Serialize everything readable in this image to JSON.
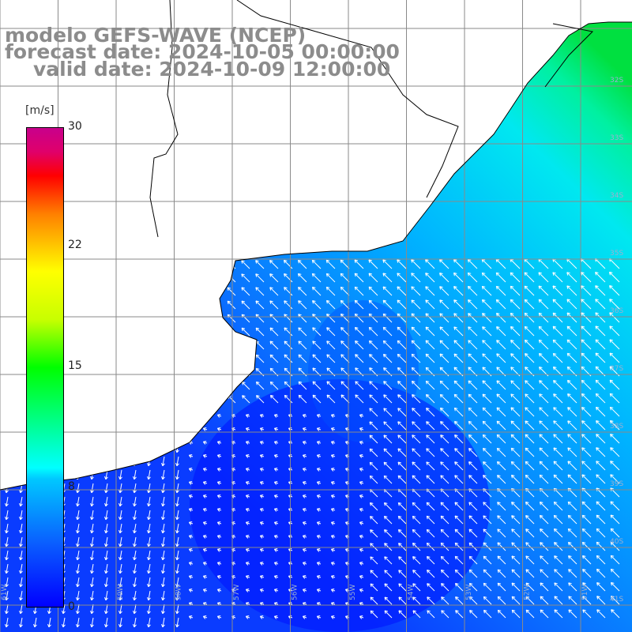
{
  "title": {
    "line1": "modelo GEFS-WAVE (NCEP)",
    "line2": "forecast date: 2024-10-05 00:00:00",
    "line3": "valid date: 2024-10-09 12:00:00"
  },
  "colorbar": {
    "unit": "[m/s]",
    "ticks": [
      {
        "value": 30,
        "label": "30"
      },
      {
        "value": 22,
        "label": "22"
      },
      {
        "value": 15,
        "label": "15"
      },
      {
        "value": 8,
        "label": "8"
      },
      {
        "value": 0,
        "label": "0"
      }
    ],
    "min": 0,
    "max": 30
  },
  "map": {
    "variable": "wind speed and direction",
    "lon_labels": [
      "61W",
      "60W",
      "59W",
      "58W",
      "57W",
      "56W",
      "55W",
      "54W",
      "53W",
      "52W",
      "51W",
      "50W"
    ],
    "lat_labels": [
      "32S",
      "33S",
      "34S",
      "35S",
      "36S",
      "37S",
      "38S",
      "39S",
      "40S",
      "41S"
    ],
    "colors": {
      "land": "#ffffff",
      "grid": "#8a8a8a",
      "coast": "#000000",
      "arrows": "#ffffff"
    }
  }
}
